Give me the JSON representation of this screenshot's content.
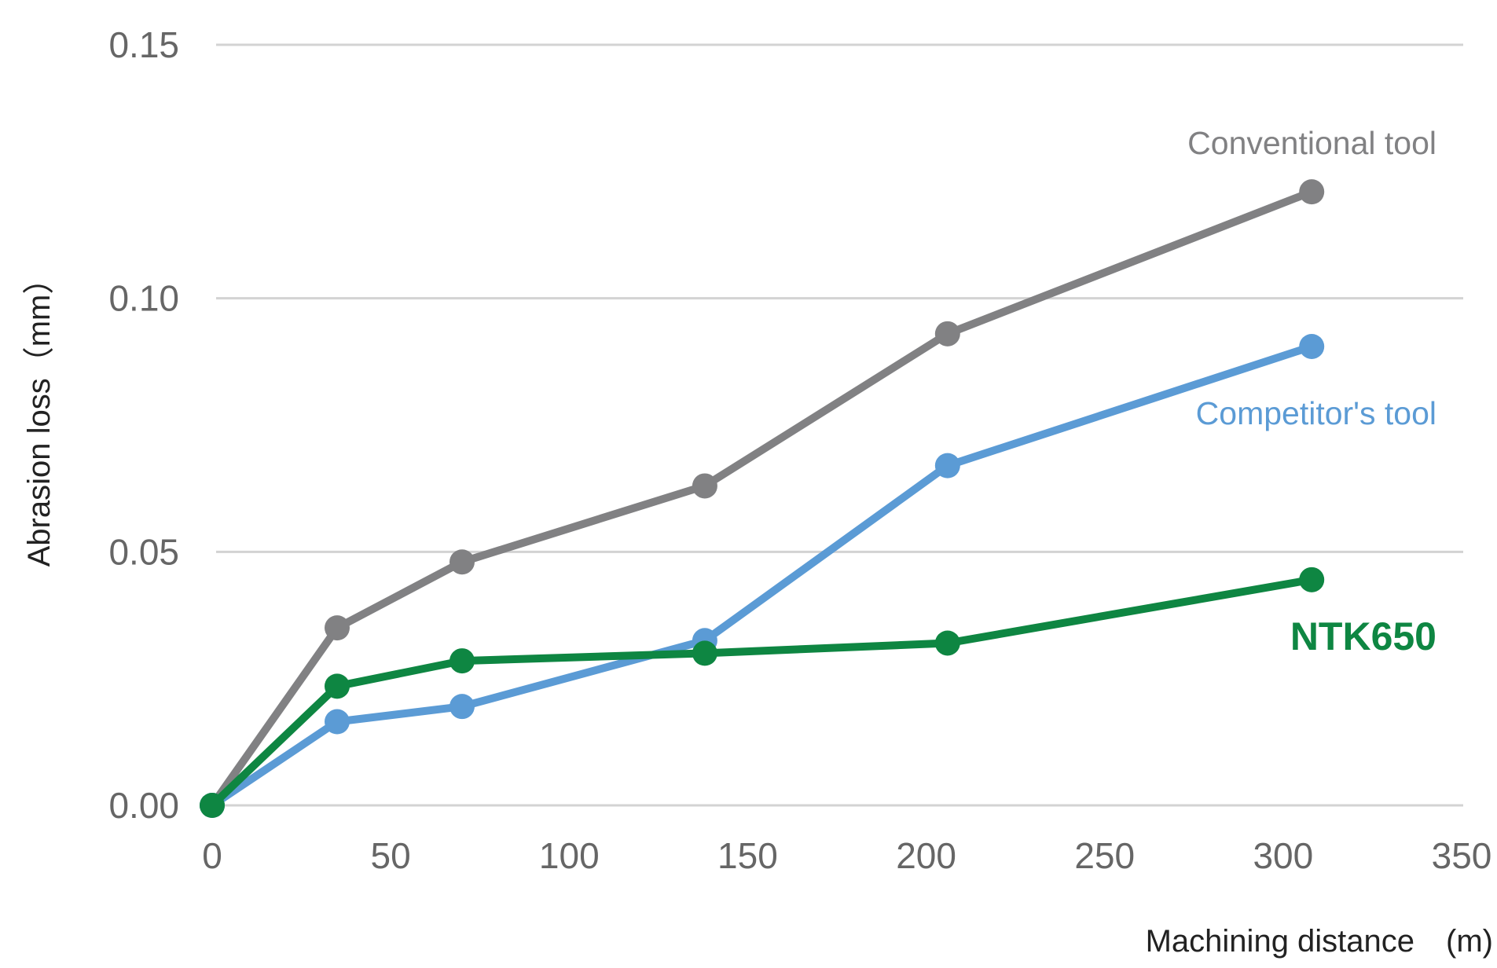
{
  "chart_data": {
    "type": "line",
    "title": "",
    "xlabel": "Machining distance　(m)",
    "ylabel": "Abrasion loss（mm）",
    "xlim": [
      0,
      350
    ],
    "ylim": [
      0,
      0.15
    ],
    "x_ticks": [
      "0",
      "50",
      "100",
      "150",
      "200",
      "250",
      "300",
      "350"
    ],
    "y_ticks": [
      "0.00",
      "0.05",
      "0.10",
      "0.15"
    ],
    "grid": "horizontal",
    "legend": "inline labels at right end of each line",
    "x": [
      0,
      35,
      70,
      138,
      206,
      308
    ],
    "series": [
      {
        "name": "Conventional tool",
        "color": "#818183",
        "values": [
          0,
          0.035,
          0.048,
          0.063,
          0.093,
          0.121
        ]
      },
      {
        "name": "Competitor's tool",
        "color": "#5b9bd5",
        "values": [
          0,
          0.0165,
          0.0195,
          0.0325,
          0.067,
          0.0905
        ]
      },
      {
        "name": "NTK650",
        "color": "#0e8642",
        "values": [
          0,
          0.0235,
          0.0285,
          0.03,
          0.032,
          0.0445
        ]
      }
    ]
  }
}
